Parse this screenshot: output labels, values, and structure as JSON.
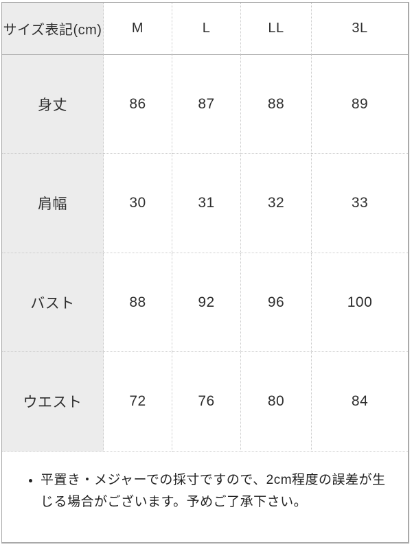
{
  "chart_data": {
    "type": "table",
    "title": "サイズ表記(cm)",
    "columns": [
      "サイズ表記(cm)",
      "M",
      "L",
      "LL",
      "3L"
    ],
    "rows": [
      {
        "label": "身丈",
        "values": [
          86,
          87,
          88,
          89
        ]
      },
      {
        "label": "肩幅",
        "values": [
          30,
          31,
          32,
          33
        ]
      },
      {
        "label": "バスト",
        "values": [
          88,
          92,
          96,
          100
        ]
      },
      {
        "label": "ウエスト",
        "values": [
          72,
          76,
          80,
          84
        ]
      }
    ],
    "note": "平置き・メジャーでの採寸ですので、2cm程度の誤差が生じる場合がございます。予めご了承下さい。"
  },
  "colors": {
    "label_bg": "#ececec",
    "outer_border": "#a9a9a9",
    "grid_line": "#c9c9c9",
    "header_underline": "#b3b3b3",
    "text": "#2e2e2e"
  }
}
